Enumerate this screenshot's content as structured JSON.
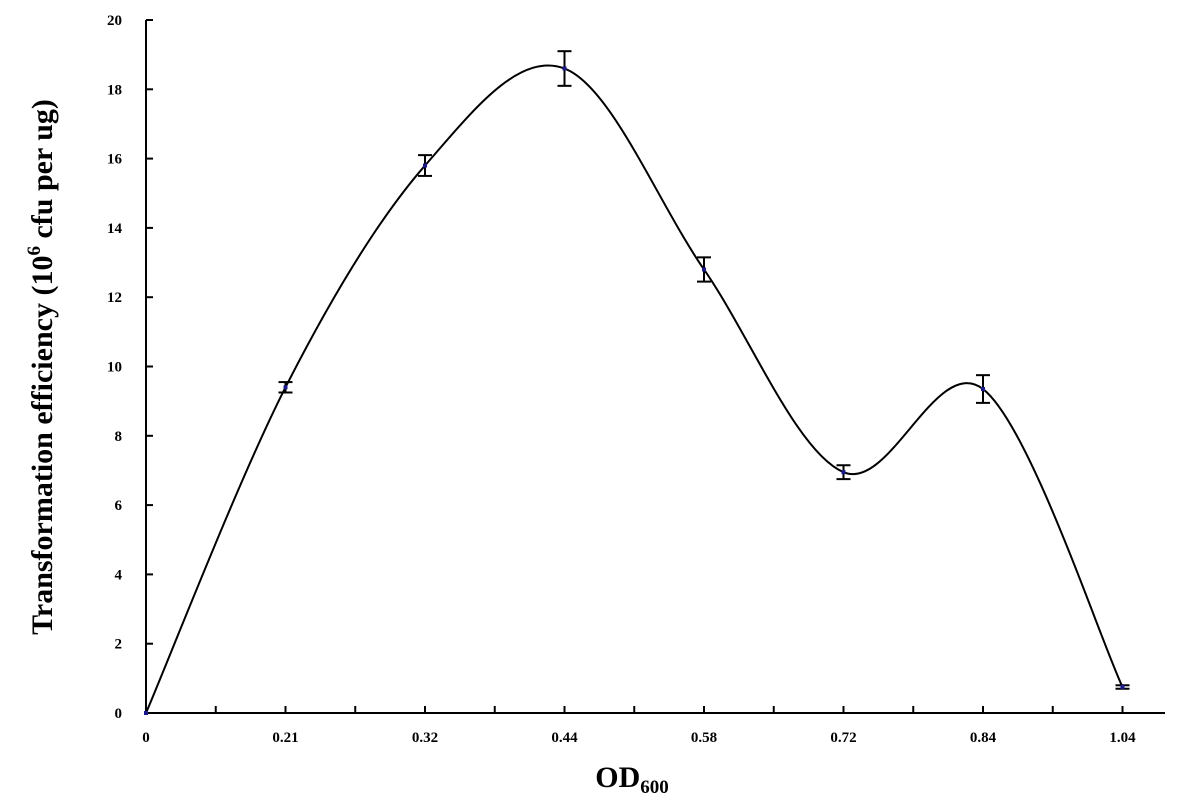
{
  "chart_data": {
    "type": "line",
    "title": "",
    "xlabel": "OD",
    "xlabel_subscript": "600",
    "ylabel_prefix": "Transformation efficiency (10",
    "ylabel_superscript": "6",
    "ylabel_suffix": " cfu per ug)",
    "categories": [
      "0",
      "0.21",
      "0.32",
      "0.44",
      "0.58",
      "0.72",
      "0.84",
      "1.04"
    ],
    "ylim": [
      0,
      20
    ],
    "yticks": [
      0,
      2,
      4,
      6,
      8,
      10,
      12,
      14,
      16,
      18,
      20
    ],
    "series": [
      {
        "values": [
          0,
          9.4,
          15.8,
          18.6,
          12.8,
          6.95,
          9.35,
          0.75
        ],
        "errors": [
          0,
          0.15,
          0.3,
          0.5,
          0.35,
          0.2,
          0.4,
          0.05
        ]
      }
    ],
    "smooth": true,
    "grid": false,
    "legend": "none",
    "line_color": "#000000",
    "error_bar_color": "#000000",
    "marker_color": "#1a1a8c"
  }
}
